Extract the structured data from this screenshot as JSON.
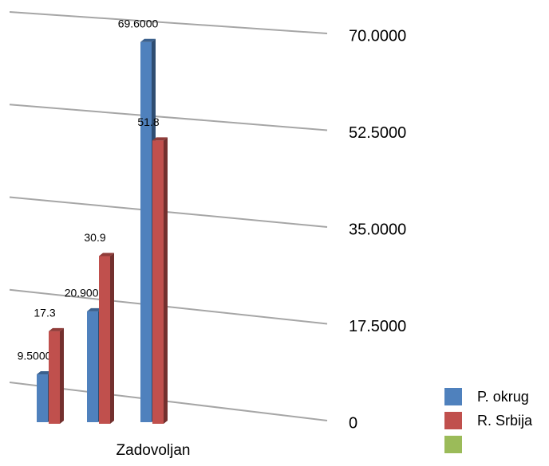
{
  "chart_data": {
    "type": "bar",
    "categories": [
      null,
      null,
      "Zadovoljan"
    ],
    "series": [
      {
        "name": "P. okrug",
        "color": "#4f81bd",
        "values": [
          9.5,
          20.9,
          69.6
        ],
        "value_labels": [
          "9.5000",
          "20.9000",
          "69.6000"
        ]
      },
      {
        "name": "R. Srbija",
        "color": "#c0504d",
        "values": [
          17.3,
          30.9,
          51.8
        ]
      },
      {
        "color": "#9bbb59",
        "values": [
          null,
          null,
          null
        ]
      }
    ],
    "ylim": [
      0,
      70
    ],
    "yticks": [
      0,
      {
        "value": 17.5,
        "label": "17.5000"
      },
      {
        "value": 35,
        "label": "35.0000"
      },
      {
        "value": 52.5,
        "label": "52.5000"
      },
      {
        "value": 70,
        "label": "70.0000"
      }
    ],
    "grid": true
  }
}
